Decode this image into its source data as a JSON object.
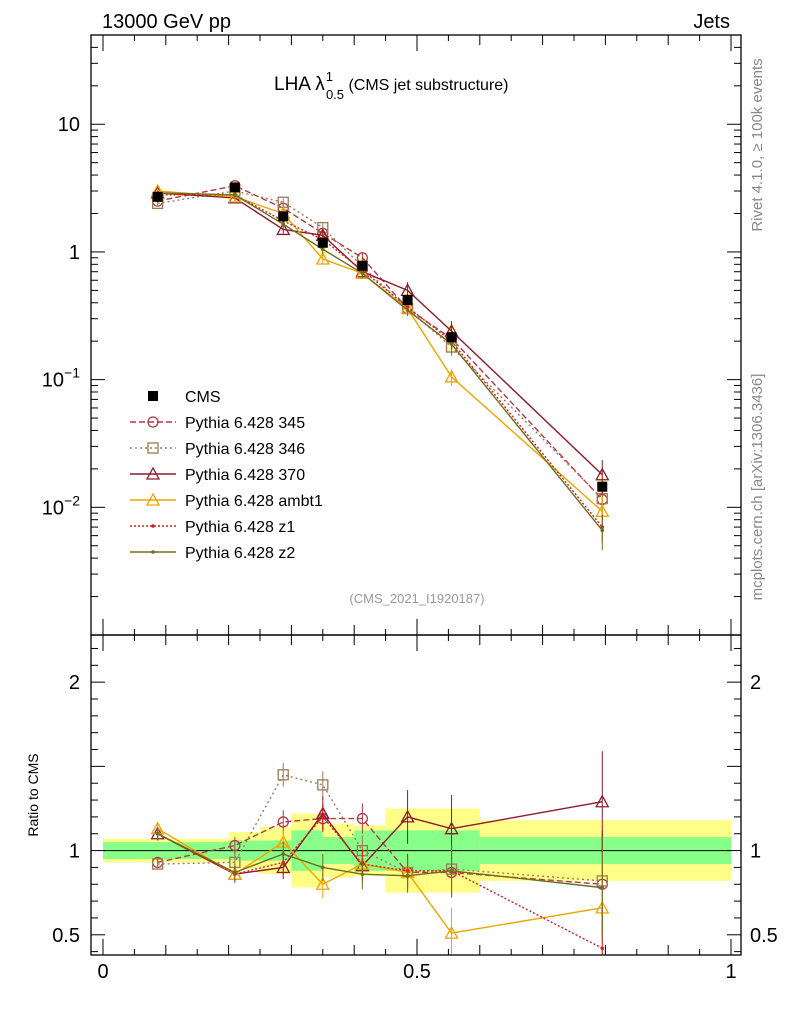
{
  "header": {
    "left": "13000 GeV pp",
    "right": "Jets"
  },
  "side_labels": {
    "top": "Rivet 4.1.0, ≥ 100k events",
    "bottom": "mcplots.cern.ch [arXiv:1306.3436]"
  },
  "title": {
    "main": "LHA λ",
    "sup": "1",
    "sub": "0.5",
    "suffix": " (CMS jet substructure)"
  },
  "analysis_id": "(CMS_2021_I1920187)",
  "ratio_ylabel": "Ratio to CMS",
  "chart_data": {
    "type": "scatter",
    "x_range": [
      0,
      1
    ],
    "x_ticks": [
      {
        "v": 0,
        "label": "0"
      },
      {
        "v": 0.5,
        "label": "0.5"
      },
      {
        "v": 1,
        "label": "1"
      }
    ],
    "main": {
      "yscale": "log",
      "ylim": [
        0.001,
        50
      ],
      "y_ticks": [
        {
          "v": 10,
          "base": "10",
          "exp": ""
        },
        {
          "v": 1,
          "base": "1",
          "exp": ""
        },
        {
          "v": 0.1,
          "base": "10",
          "exp": "−1"
        },
        {
          "v": 0.01,
          "base": "10",
          "exp": "−2"
        }
      ]
    },
    "ratio": {
      "ylim": [
        0.38,
        2.28
      ],
      "y_ticks": [
        {
          "v": 2,
          "label": "2"
        },
        {
          "v": 1,
          "label": "1"
        },
        {
          "v": 0.5,
          "label": "0.5"
        }
      ]
    },
    "x": [
      0.087,
      0.21,
      0.287,
      0.35,
      0.413,
      0.485,
      0.555,
      0.795
    ],
    "bins": [
      [
        0.0,
        0.2
      ],
      [
        0.2,
        0.25
      ],
      [
        0.25,
        0.3
      ],
      [
        0.3,
        0.35
      ],
      [
        0.35,
        0.4
      ],
      [
        0.4,
        0.45
      ],
      [
        0.45,
        0.6
      ],
      [
        0.6,
        1.0
      ]
    ],
    "data": {
      "name": "CMS",
      "values": [
        2.7,
        3.2,
        1.9,
        1.18,
        0.78,
        0.42,
        0.215,
        0.0145
      ],
      "band_inner": [
        0.05,
        0.06,
        0.06,
        0.12,
        0.08,
        0.12,
        0.12,
        0.08
      ],
      "band_outer": [
        0.07,
        0.11,
        0.14,
        0.22,
        0.16,
        0.15,
        0.25,
        0.18
      ]
    },
    "series": [
      {
        "name": "Pythia 6.428 345",
        "color": "#b03a48",
        "dash": "6,3",
        "marker": "circle",
        "values": [
          2.5,
          3.3,
          2.2,
          1.4,
          0.9,
          0.36,
          0.21,
          0.0115
        ],
        "ratio": [
          0.93,
          1.03,
          1.17,
          1.19,
          1.19,
          0.87,
          0.87,
          0.8
        ],
        "ratio_err": [
          0.03,
          0.05,
          0.07,
          0.08,
          0.09,
          0.1,
          0.15,
          0.3
        ]
      },
      {
        "name": "Pythia 6.428 346",
        "color": "#9b7a55",
        "dash": "2,3",
        "marker": "square",
        "values": [
          2.4,
          3.0,
          2.45,
          1.55,
          0.77,
          0.36,
          0.18,
          0.0117
        ],
        "ratio": [
          0.92,
          0.93,
          1.45,
          1.39,
          1.0,
          0.87,
          0.89,
          0.82
        ],
        "ratio_err": [
          0.03,
          0.05,
          0.07,
          0.08,
          0.09,
          0.1,
          0.15,
          0.3
        ]
      },
      {
        "name": "Pythia 6.428 370",
        "color": "#8b1a2b",
        "dash": "",
        "marker": "triangle",
        "values": [
          2.9,
          2.65,
          1.5,
          1.35,
          0.7,
          0.5,
          0.24,
          0.018
        ],
        "ratio": [
          1.1,
          0.86,
          0.9,
          1.22,
          0.91,
          1.2,
          1.13,
          1.29
        ],
        "ratio_err": [
          0.04,
          0.05,
          0.07,
          0.1,
          0.09,
          0.16,
          0.2,
          0.3
        ]
      },
      {
        "name": "Pythia 6.428 ambt1",
        "color": "#f0a400",
        "dash": "",
        "marker": "triangle",
        "values": [
          3.0,
          2.7,
          2.0,
          0.88,
          0.68,
          0.36,
          0.105,
          0.0093
        ],
        "ratio": [
          1.13,
          0.86,
          1.05,
          0.8,
          0.92,
          0.87,
          0.51,
          0.66
        ],
        "ratio_err": [
          0.04,
          0.05,
          0.07,
          0.08,
          0.09,
          0.1,
          0.15,
          0.3
        ]
      },
      {
        "name": "Pythia 6.428 z1",
        "color": "#d02020",
        "dash": "2,2",
        "marker": "dot",
        "values": [
          2.8,
          2.8,
          1.75,
          1.25,
          0.72,
          0.37,
          0.2,
          0.007
        ],
        "ratio": [
          1.1,
          0.86,
          0.93,
          1.2,
          0.92,
          0.88,
          0.88,
          0.42
        ],
        "ratio_err": [
          0.04,
          0.05,
          0.07,
          0.08,
          0.09,
          0.1,
          0.15,
          0.25
        ]
      },
      {
        "name": "Pythia 6.428 z2",
        "color": "#6e6e1e",
        "dash": "",
        "marker": "dot",
        "values": [
          2.9,
          2.8,
          1.65,
          1.05,
          0.68,
          0.35,
          0.19,
          0.0066
        ],
        "ratio": [
          1.1,
          0.87,
          0.98,
          0.9,
          0.86,
          0.85,
          0.88,
          0.78
        ],
        "ratio_err": [
          0.04,
          0.05,
          0.07,
          0.08,
          0.09,
          0.1,
          0.15,
          0.3
        ]
      }
    ]
  }
}
